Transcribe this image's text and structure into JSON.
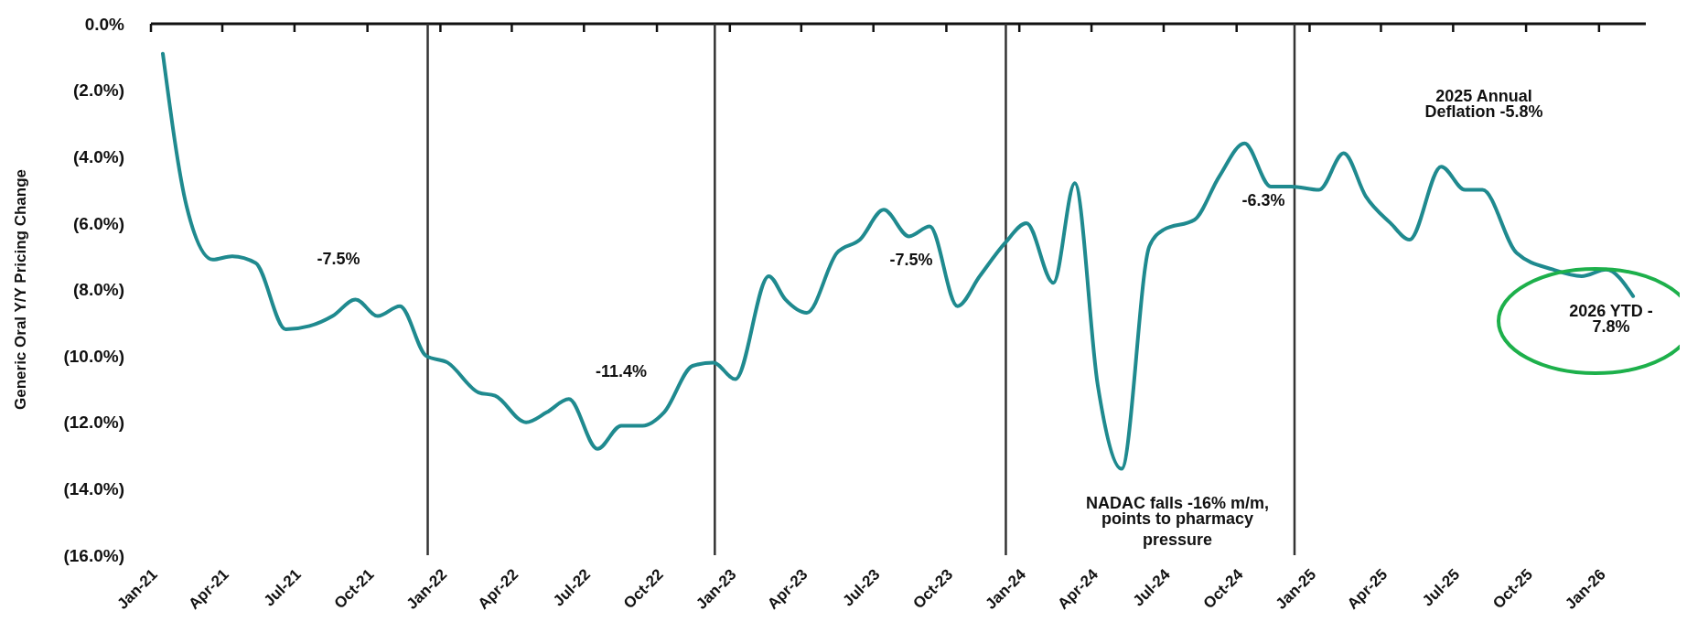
{
  "chart_data": {
    "type": "line",
    "ylabel": "Generic Oral Y/Y Pricing Change",
    "x": [
      "2021-01-16",
      "2021-02-15",
      "2021-03-20",
      "2021-04-13",
      "2021-05-13",
      "2021-06-20",
      "2021-07-20",
      "2021-08-18",
      "2021-09-16",
      "2021-10-14",
      "2021-11-11",
      "2021-12-14",
      "2022-01-10",
      "2022-02-18",
      "2022-03-11",
      "2022-04-19",
      "2022-05-15",
      "2022-06-12",
      "2022-07-18",
      "2022-08-17",
      "2022-09-13",
      "2022-10-10",
      "2022-11-15",
      "2022-12-11",
      "2023-01-08",
      "2023-02-19",
      "2023-03-12",
      "2023-04-08",
      "2023-05-16",
      "2023-06-14",
      "2023-07-14",
      "2023-08-15",
      "2023-09-10",
      "2023-10-15",
      "2023-11-12",
      "2023-12-14",
      "2024-01-10",
      "2024-02-13",
      "2024-03-11",
      "2024-04-09",
      "2024-05-09",
      "2024-06-13",
      "2024-07-01",
      "2024-08-09",
      "2024-09-09",
      "2024-10-11",
      "2024-11-13",
      "2024-12-09",
      "2025-01-13",
      "2025-02-13",
      "2025-03-13",
      "2025-04-13",
      "2025-05-07",
      "2025-06-16",
      "2025-07-16",
      "2025-08-07",
      "2025-09-19",
      "2025-11-04",
      "2025-12-10",
      "2026-01-10",
      "2026-02-13"
    ],
    "series": [
      {
        "color": "#1f8a8f",
        "values": [
          -0.9,
          -5.5,
          -7.1,
          -7.0,
          -7.2,
          -9.2,
          -9.1,
          -8.8,
          -8.3,
          -8.8,
          -8.5,
          -10.0,
          -10.2,
          -11.1,
          -11.2,
          -12.0,
          -11.7,
          -11.3,
          -12.8,
          -12.1,
          -12.1,
          -11.7,
          -10.3,
          -10.2,
          -10.7,
          -7.6,
          -8.3,
          -8.7,
          -6.9,
          -6.5,
          -5.6,
          -6.4,
          -6.1,
          -8.5,
          -7.6,
          -6.6,
          -6.0,
          -7.8,
          -4.8,
          -10.9,
          -13.4,
          -6.7,
          -6.2,
          -5.9,
          -4.6,
          -3.6,
          -4.9,
          -4.9,
          -5.0,
          -3.9,
          -5.2,
          -6.0,
          -6.5,
          -4.3,
          -5.0,
          -5.0,
          -6.9,
          -7.4,
          -7.6,
          -7.4,
          -8.2
        ]
      }
    ],
    "xlim": [
      "2021-01",
      "2026-03"
    ],
    "xticks": [
      {
        "value": "2021-01",
        "label": "Jan-21"
      },
      {
        "value": "2021-04",
        "label": "Apr-21"
      },
      {
        "value": "2021-07",
        "label": "Jul-21"
      },
      {
        "value": "2021-10",
        "label": "Oct-21"
      },
      {
        "value": "2022-01",
        "label": "Jan-22"
      },
      {
        "value": "2022-04",
        "label": "Apr-22"
      },
      {
        "value": "2022-07",
        "label": "Jul-22"
      },
      {
        "value": "2022-10",
        "label": "Oct-22"
      },
      {
        "value": "2023-01",
        "label": "Jan-23"
      },
      {
        "value": "2023-04",
        "label": "Apr-23"
      },
      {
        "value": "2023-07",
        "label": "Jul-23"
      },
      {
        "value": "2023-10",
        "label": "Oct-23"
      },
      {
        "value": "2024-01",
        "label": "Jan-24"
      },
      {
        "value": "2024-04",
        "label": "Apr-24"
      },
      {
        "value": "2024-07",
        "label": "Jul-24"
      },
      {
        "value": "2024-10",
        "label": "Oct-24"
      },
      {
        "value": "2025-01",
        "label": "Jan-25"
      },
      {
        "value": "2025-04",
        "label": "Apr-25"
      },
      {
        "value": "2025-07",
        "label": "Jul-25"
      },
      {
        "value": "2025-10",
        "label": "Oct-25"
      },
      {
        "value": "2026-01",
        "label": "Jan-26"
      }
    ],
    "ylim": [
      -16,
      0
    ],
    "yticks": [
      {
        "value": 0,
        "label": "0.0%"
      },
      {
        "value": -2,
        "label": "(2.0%)"
      },
      {
        "value": -4,
        "label": "(4.0%)"
      },
      {
        "value": -6,
        "label": "(6.0%)"
      },
      {
        "value": -8,
        "label": "(8.0%)"
      },
      {
        "value": -10,
        "label": "(10.0%)"
      },
      {
        "value": -12,
        "label": "(12.0%)"
      },
      {
        "value": -14,
        "label": "(14.0%)"
      },
      {
        "value": -16,
        "label": "(16.0%)"
      }
    ],
    "ref_lines": [
      {
        "axis": "x",
        "value": "2021-12-16",
        "color": "#333333"
      },
      {
        "axis": "x",
        "value": "2022-12-13",
        "color": "#333333"
      },
      {
        "axis": "x",
        "value": "2023-12-15",
        "color": "#333333"
      },
      {
        "axis": "x",
        "value": "2024-12-13",
        "color": "#333333"
      }
    ],
    "annotations": [
      "-7.5%",
      "-11.4%",
      "-7.5%",
      "-6.3%",
      "2025 Annual\nDeflation -5.8%",
      "NADAC falls -16% m/m,\npoints to pharmacy\npressure",
      "2026 YTD -\n7.8%"
    ],
    "grid": false,
    "marker": "none",
    "line_style": "solid"
  }
}
